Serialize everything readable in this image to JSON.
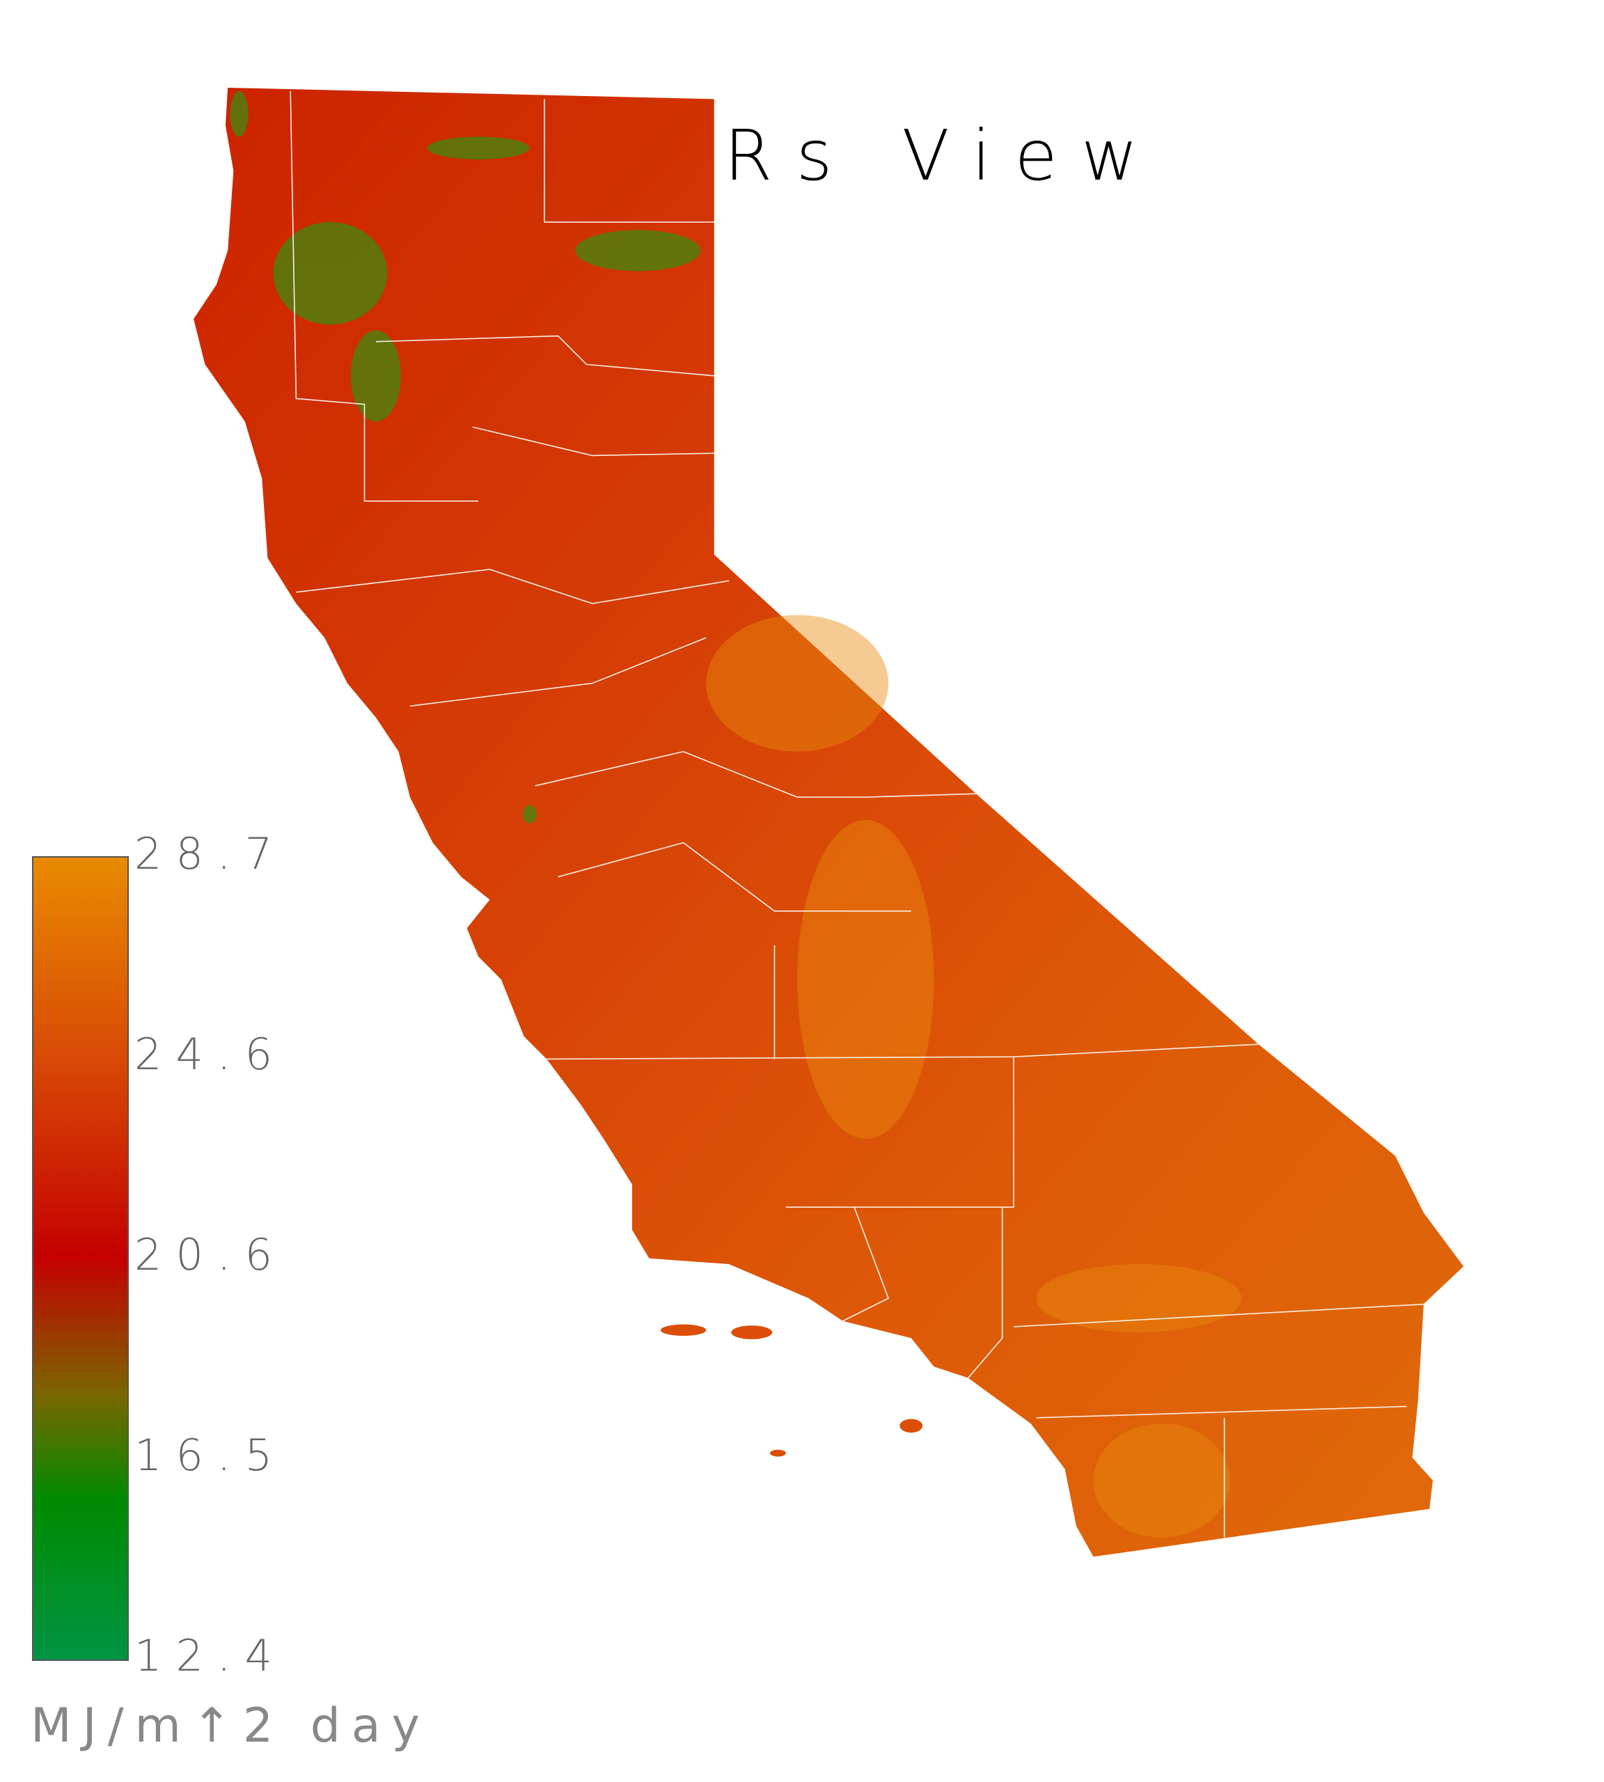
{
  "title": "Rs View",
  "legend": {
    "units": "MJ/m↑2 day",
    "ticks": [
      "28.7",
      "24.6",
      "20.6",
      "16.5",
      "12.4"
    ],
    "range": [
      12.4,
      28.7
    ],
    "colors": [
      "#e88a00",
      "#d84a06",
      "#c40000",
      "#7a6600",
      "#008a00",
      "#009444"
    ]
  },
  "map": {
    "region": "California counties",
    "boundary_color": "#ffffff"
  }
}
